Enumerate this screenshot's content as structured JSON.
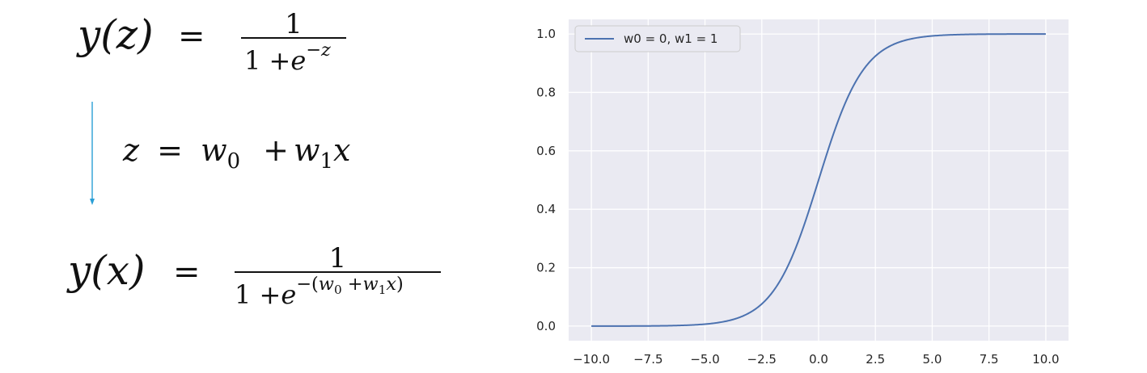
{
  "equations": {
    "sigmoid_z": {
      "lhs": "y(z)",
      "eq": "=",
      "numerator": "1",
      "den_one": "1",
      "den_plus": "+",
      "den_e": "e",
      "den_exp": "−z"
    },
    "linear": {
      "lhs": "z",
      "eq": "=",
      "w0": "w",
      "w0_sub": "0",
      "plus": "+",
      "w1": "w",
      "w1_sub": "1",
      "x": "x"
    },
    "sigmoid_x": {
      "lhs": "y(x)",
      "eq": "=",
      "numerator": "1",
      "den_one": "1",
      "den_plus": "+",
      "den_e": "e",
      "exp_open": "−(",
      "exp_w0": "w",
      "exp_w0_sub": "0",
      "exp_plus": "+",
      "exp_w1": "w",
      "exp_w1_sub": "1",
      "exp_x": "x",
      "exp_close": ")"
    },
    "arrow_color": "#2a9fd6"
  },
  "chart_data": {
    "type": "line",
    "series": [
      {
        "name": "w0 = 0, w1 = 1",
        "w0": 0,
        "w1": 1,
        "color": "#4c72b0",
        "x_range": [
          -10,
          10
        ]
      }
    ],
    "xlim": [
      -11.0,
      11.0
    ],
    "ylim": [
      -0.05,
      1.05
    ],
    "xticks": [
      -10.0,
      -7.5,
      -5.0,
      -2.5,
      0.0,
      2.5,
      5.0,
      7.5,
      10.0
    ],
    "xtick_labels": [
      "−10.0",
      "−7.5",
      "−5.0",
      "−2.5",
      "0.0",
      "2.5",
      "5.0",
      "7.5",
      "10.0"
    ],
    "yticks": [
      0.0,
      0.2,
      0.4,
      0.6,
      0.8,
      1.0
    ],
    "ytick_labels": [
      "0.0",
      "0.2",
      "0.4",
      "0.6",
      "0.8",
      "1.0"
    ],
    "grid": true,
    "legend": "top-left",
    "background": "#eaeaf2"
  }
}
